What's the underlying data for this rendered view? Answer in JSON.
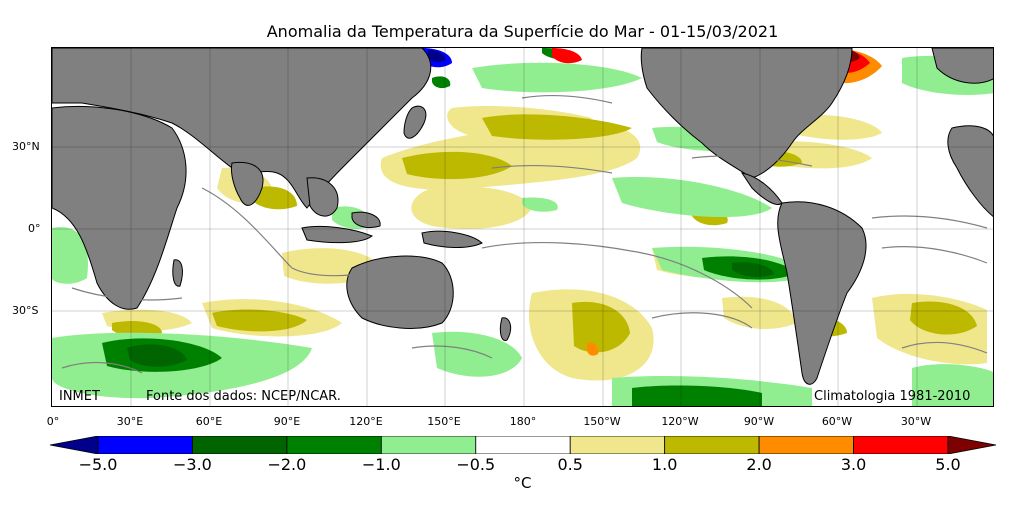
{
  "title": "Anomalia da Temperatura da Superfície do Mar - 01-15/03/2021",
  "lat_labels": [
    "30°N",
    "0°",
    "30°S"
  ],
  "lon_labels": [
    "0°",
    "30°E",
    "60°E",
    "90°E",
    "120°E",
    "150°E",
    "180°",
    "150°W",
    "120°W",
    "90°W",
    "60°W",
    "30°W"
  ],
  "source_left": "INMET",
  "source_data": "Fonte dos dados: NCEP/NCAR.",
  "climatology": "Climatologia 1981-2010",
  "colorbar": {
    "unit": "°C",
    "tick_labels": [
      "−5.0",
      "−3.0",
      "−2.0",
      "−1.0",
      "−0.5",
      "0.5",
      "1.0",
      "2.0",
      "3.0",
      "5.0"
    ],
    "colors": [
      "#0000ff",
      "#006400",
      "#008000",
      "#90ee90",
      "#ffffff",
      "#f0e68c",
      "#bdb800",
      "#ff8c00",
      "#ff0000"
    ],
    "under_color": "#00008b",
    "over_color": "#7f0000"
  },
  "colors": {
    "land": "#808080",
    "coast": "#000000",
    "contour": "#808080",
    "grid": "#000000"
  }
}
